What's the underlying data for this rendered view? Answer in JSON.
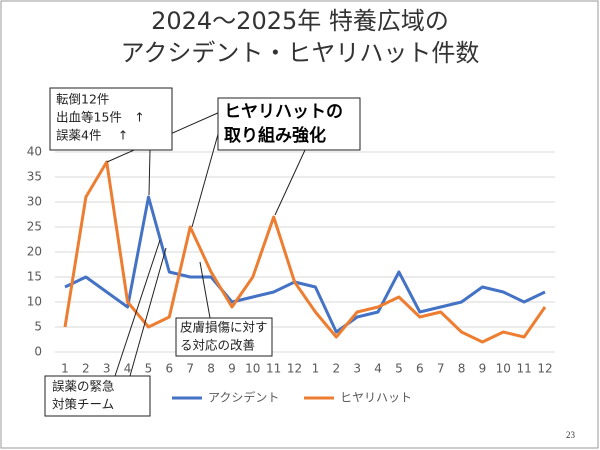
{
  "chart_data": {
    "type": "line",
    "title": [
      "2024～2025年 特養広域の",
      "アクシデント・ヒヤリハット件数"
    ],
    "categories": [
      "1",
      "2",
      "3",
      "4",
      "5",
      "6",
      "7",
      "8",
      "9",
      "10",
      "11",
      "12",
      "1",
      "2",
      "3",
      "4",
      "5",
      "6",
      "7",
      "8",
      "9",
      "10",
      "11",
      "12"
    ],
    "series": [
      {
        "name": "アクシデント",
        "color": "#4472c4",
        "values": [
          13,
          15,
          12,
          9,
          31,
          16,
          15,
          15,
          10,
          11,
          12,
          14,
          13,
          4,
          7,
          8,
          16,
          8,
          9,
          10,
          13,
          12,
          10,
          12
        ]
      },
      {
        "name": "ヒヤリハット",
        "color": "#ed7d31",
        "values": [
          5,
          31,
          38,
          10,
          5,
          7,
          25,
          16,
          9,
          15,
          27,
          14,
          8,
          3,
          8,
          9,
          11,
          7,
          8,
          4,
          2,
          4,
          3,
          9
        ]
      }
    ],
    "ylim": [
      0,
      40
    ],
    "yticks": [
      0,
      5,
      10,
      15,
      20,
      25,
      30,
      35,
      40
    ],
    "grid": true,
    "legend": "bottom",
    "annotations": [
      {
        "lines": [
          "転倒12件",
          "出血等15件　↑",
          "誤薬4件　 ↑"
        ]
      },
      {
        "lines": [
          "ヒヤリハットの",
          "取り組み強化"
        ]
      },
      {
        "lines": [
          "皮膚損傷に対す",
          "る対応の改善"
        ]
      },
      {
        "lines": [
          "誤薬の緊急",
          "対策チーム"
        ]
      }
    ]
  },
  "page_number": "23"
}
